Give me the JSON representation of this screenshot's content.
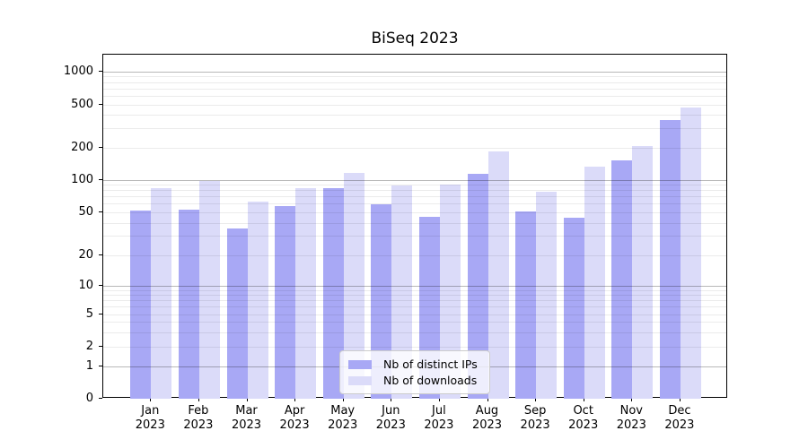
{
  "chart_data": {
    "type": "bar",
    "title": "BiSeq 2023",
    "categories": [
      "Jan",
      "Feb",
      "Mar",
      "Apr",
      "May",
      "Jun",
      "Jul",
      "Aug",
      "Sep",
      "Oct",
      "Nov",
      "Dec"
    ],
    "category_year": "2023",
    "series": [
      {
        "name": "Nb of distinct IPs",
        "color": "#a8a8f5",
        "values": [
          52,
          53,
          36,
          58,
          85,
          60,
          46,
          115,
          51,
          45,
          155,
          365
        ]
      },
      {
        "name": "Nb of downloads",
        "color": "#dbdbf9",
        "values": [
          85,
          98,
          64,
          84,
          118,
          89,
          91,
          185,
          78,
          135,
          210,
          470
        ]
      }
    ],
    "y_axis": {
      "scale": "symlog",
      "ticks": [
        0,
        1,
        2,
        5,
        10,
        20,
        50,
        100,
        200,
        500,
        1000
      ],
      "ylim": [
        0,
        1400
      ],
      "minor_gridlines": true
    },
    "x_axis": {
      "tick_label_lines": 2
    },
    "legend": {
      "position": "lower-center-inside"
    },
    "grid": "horizontal-major-and-minor",
    "colors": {
      "background": "#ffffff",
      "axis_frame": "#000000",
      "major_gridline": "rgba(0,0,0,0.28)",
      "minor_gridline": "rgba(0,0,0,0.08)",
      "text": "#000000"
    }
  }
}
